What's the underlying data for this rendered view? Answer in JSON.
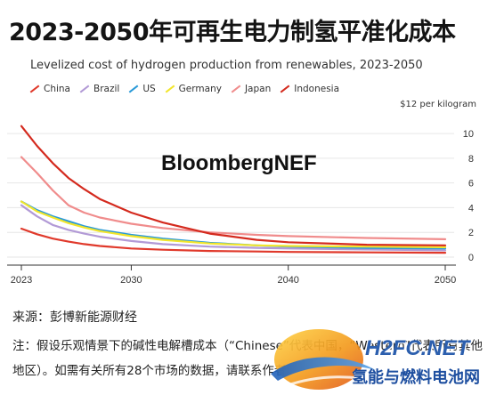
{
  "title": "2023-2050年可再生电力制氢平准化成本",
  "chart_data": {
    "type": "line",
    "subtitle": "Levelized cost of hydrogen production from renewables, 2023-2050",
    "unit": "$12 per kilogram",
    "brand": "BloombergNEF",
    "x": [
      2023,
      2024,
      2025,
      2026,
      2027,
      2028,
      2030,
      2032,
      2035,
      2038,
      2040,
      2045,
      2050
    ],
    "x_ticks": [
      "2023",
      "2030",
      "2040",
      "2050"
    ],
    "y_ticks": [
      "0",
      "2",
      "4",
      "6",
      "8",
      "10"
    ],
    "xlim": [
      2023,
      2050
    ],
    "ylim": [
      0,
      12
    ],
    "grid": true,
    "legend_position": "top-left",
    "series": [
      {
        "name": "China",
        "color": "#e0392b",
        "values": [
          2.3,
          1.85,
          1.5,
          1.25,
          1.05,
          0.9,
          0.7,
          0.6,
          0.5,
          0.45,
          0.42,
          0.38,
          0.35
        ]
      },
      {
        "name": "Brazil",
        "color": "#b29ad6",
        "values": [
          4.2,
          3.3,
          2.6,
          2.2,
          1.9,
          1.65,
          1.3,
          1.05,
          0.85,
          0.75,
          0.7,
          0.62,
          0.55
        ]
      },
      {
        "name": "US",
        "color": "#2a9ad8",
        "values": [
          4.5,
          3.8,
          3.3,
          2.9,
          2.5,
          2.2,
          1.8,
          1.5,
          1.15,
          0.95,
          0.85,
          0.75,
          0.7
        ]
      },
      {
        "name": "Germany",
        "color": "#f2e52b",
        "values": [
          4.5,
          3.7,
          3.2,
          2.75,
          2.4,
          2.1,
          1.7,
          1.4,
          1.1,
          0.95,
          0.9,
          0.85,
          0.8
        ]
      },
      {
        "name": "Japan",
        "color": "#f08c8c",
        "values": [
          8.1,
          6.8,
          5.4,
          4.2,
          3.6,
          3.2,
          2.7,
          2.35,
          2.0,
          1.8,
          1.7,
          1.55,
          1.45
        ]
      },
      {
        "name": "Indonesia",
        "color": "#d42a1e",
        "values": [
          10.6,
          9.0,
          7.6,
          6.4,
          5.5,
          4.7,
          3.6,
          2.8,
          1.9,
          1.4,
          1.2,
          1.0,
          0.95
        ]
      }
    ]
  },
  "source": "来源：彭博新能源财经",
  "note": "注：假设乐观情景下的碱性电解槽成本（“Chinese”代表中国，“Western”代表所有其他地区）。如需有关所有28个市场的数据，请联系作者。",
  "site": {
    "logo": "H2FC.NET",
    "name": "氢能与燃料电池网"
  }
}
